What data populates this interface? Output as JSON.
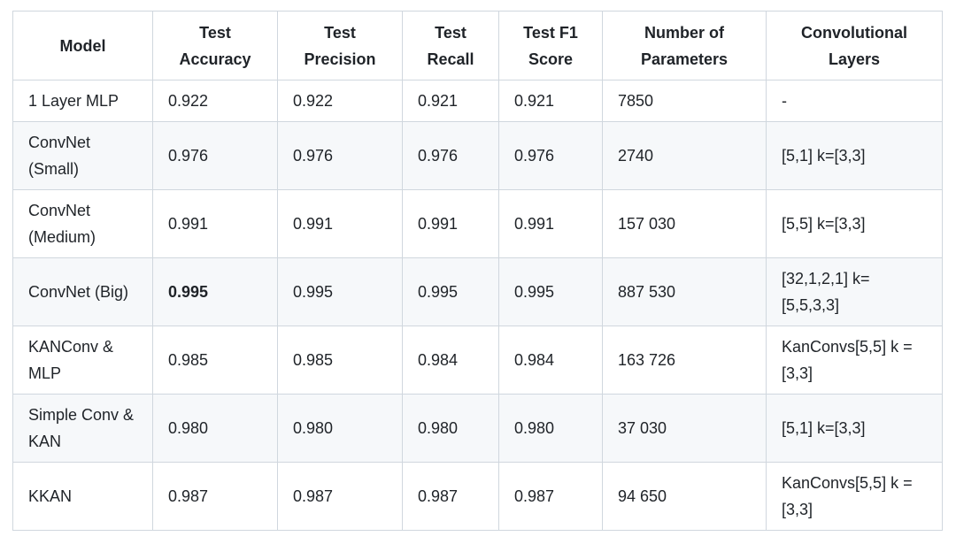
{
  "table": {
    "header": [
      "Model",
      "Test Accuracy",
      "Test Precision",
      "Test Recall",
      "Test F1 Score",
      "Number of Parameters",
      "Convolutional Layers"
    ],
    "rows": [
      [
        "1 Layer MLP",
        "0.922",
        "0.922",
        "0.921",
        "0.921",
        "7850",
        "-"
      ],
      [
        "ConvNet (Small)",
        "0.976",
        "0.976",
        "0.976",
        "0.976",
        "2740",
        "[5,1] k=[3,3]"
      ],
      [
        "ConvNet (Medium)",
        "0.991",
        "0.991",
        "0.991",
        "0.991",
        "157 030",
        "[5,5] k=[3,3]"
      ],
      [
        "ConvNet (Big)",
        "0.995",
        "0.995",
        "0.995",
        "0.995",
        "887 530",
        "[32,1,2,1] k=[5,5,3,3]"
      ],
      [
        "KANConv & MLP",
        "0.985",
        "0.985",
        "0.984",
        "0.984",
        "163 726",
        "KanConvs[5,5] k =[3,3]"
      ],
      [
        "Simple Conv & KAN",
        "0.980",
        "0.980",
        "0.980",
        "0.980",
        "37 030",
        "[5,1] k=[3,3]"
      ],
      [
        "KKAN",
        "0.987",
        "0.987",
        "0.987",
        "0.987",
        "94 650",
        "KanConvs[5,5] k =[3,3]"
      ]
    ]
  }
}
